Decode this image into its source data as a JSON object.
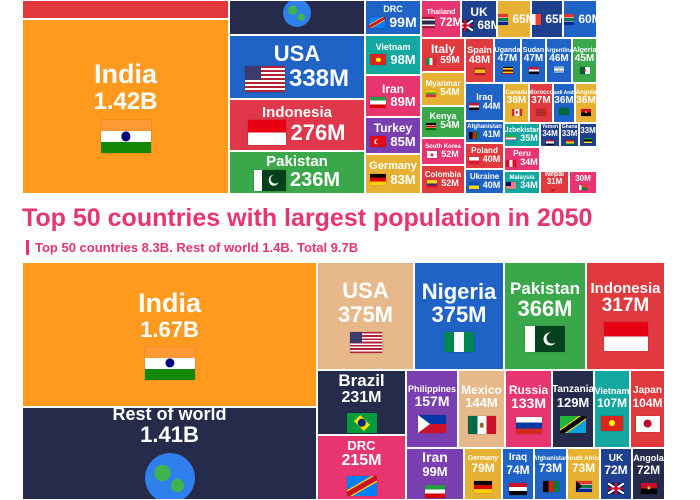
{
  "chart_data": [
    {
      "type": "treemap",
      "title": "",
      "subtitle": "",
      "unit": "people",
      "items": [
        {
          "name": "",
          "value": "",
          "color": "#e03a3e",
          "flag": "none"
        },
        {
          "name": "",
          "value": "",
          "color": "#262b4c",
          "flag": "globe"
        },
        {
          "name": "India",
          "value": "1.42B",
          "color": "#ff9a1f",
          "flag": "india"
        },
        {
          "name": "USA",
          "value": "338M",
          "color": "#1f63c6",
          "flag": "usa"
        },
        {
          "name": "Indonesia",
          "value": "276M",
          "color": "#e0374a",
          "flag": "indonesia"
        },
        {
          "name": "Pakistan",
          "value": "236M",
          "color": "#3aa84a",
          "flag": "pakistan"
        },
        {
          "name": "DRC",
          "value": "99M",
          "color": "#1f63c6",
          "flag": "drc"
        },
        {
          "name": "Vietnam",
          "value": "98M",
          "color": "#12a8a0",
          "flag": "vietnam"
        },
        {
          "name": "Iran",
          "value": "89M",
          "color": "#e8356f",
          "flag": "iran"
        },
        {
          "name": "Turkey",
          "value": "85M",
          "color": "#7a3fb0",
          "flag": "turkey"
        },
        {
          "name": "Germany",
          "value": "83M",
          "color": "#e7b233",
          "flag": "germany"
        },
        {
          "name": "Thailand",
          "value": "72M",
          "color": "#e8356f",
          "flag": "thailand"
        },
        {
          "name": "UK",
          "value": "68M",
          "color": "#1f3f8f",
          "flag": "uk"
        },
        {
          "name": "",
          "value": "65M",
          "color": "#e7b233",
          "flag": "southafrica"
        },
        {
          "name": "",
          "value": "65M",
          "color": "#1f3f8f",
          "flag": "france"
        },
        {
          "name": "",
          "value": "60M",
          "color": "#1f63c6",
          "flag": "southafrica"
        },
        {
          "name": "Italy",
          "value": "59M",
          "color": "#e03a3e",
          "flag": "italy"
        },
        {
          "name": "Myanmar",
          "value": "54M",
          "color": "#e7b233",
          "flag": "myanmar"
        },
        {
          "name": "Kenya",
          "value": "54M",
          "color": "#3aa84a",
          "flag": "kenya"
        },
        {
          "name": "South Korea",
          "value": "52M",
          "color": "#e8356f",
          "flag": "southkorea"
        },
        {
          "name": "Colombia",
          "value": "52M",
          "color": "#e03a3e",
          "flag": "colombia"
        },
        {
          "name": "Spain",
          "value": "48M",
          "color": "#e03a3e",
          "flag": "spain"
        },
        {
          "name": "Uganda",
          "value": "47M",
          "color": "#1f63c6",
          "flag": "uganda"
        },
        {
          "name": "Sudan",
          "value": "47M",
          "color": "#1f63c6",
          "flag": "sudan"
        },
        {
          "name": "Argentina",
          "value": "46M",
          "color": "#1f63c6",
          "flag": "argentina"
        },
        {
          "name": "Algeria",
          "value": "45M",
          "color": "#3aa84a",
          "flag": "algeria"
        },
        {
          "name": "Iraq",
          "value": "44M",
          "color": "#1f63c6",
          "flag": "iraq"
        },
        {
          "name": "Afghanistan",
          "value": "41M",
          "color": "#1f63c6",
          "flag": "afghanistan"
        },
        {
          "name": "Poland",
          "value": "40M",
          "color": "#e03a3e",
          "flag": "poland"
        },
        {
          "name": "Ukraine",
          "value": "40M",
          "color": "#1f63c6",
          "flag": "ukraine"
        },
        {
          "name": "Canada",
          "value": "38M",
          "color": "#e7b233",
          "flag": "canada"
        },
        {
          "name": "Morocco",
          "value": "37M",
          "color": "#e03a3e",
          "flag": "morocco"
        },
        {
          "name": "Saudi Arabia",
          "value": "36M",
          "color": "#1f63c6",
          "flag": "saudi"
        },
        {
          "name": "Angola",
          "value": "36M",
          "color": "#e7b233",
          "flag": "angola"
        },
        {
          "name": "Uzbekistan",
          "value": "35M",
          "color": "#12a8a0",
          "flag": "uzbekistan"
        },
        {
          "name": "Yemen",
          "value": "34M",
          "color": "#1f3f8f",
          "flag": "yemen"
        },
        {
          "name": "Ghana",
          "value": "33M",
          "color": "#1f3f8f",
          "flag": "ghana"
        },
        {
          "name": "",
          "value": "33M",
          "color": "#1f3f8f",
          "flag": "mozambique"
        },
        {
          "name": "Peru",
          "value": "34M",
          "color": "#e8356f",
          "flag": "peru"
        },
        {
          "name": "Malaysia",
          "value": "34M",
          "color": "#12a8a0",
          "flag": "malaysia"
        },
        {
          "name": "Nepal",
          "value": "31M",
          "color": "#e03a3e",
          "flag": "nepal"
        },
        {
          "name": "",
          "value": "30M",
          "color": "#e8356f",
          "flag": "madagascar"
        }
      ]
    },
    {
      "type": "treemap",
      "title": "Top 50 countries with largest population in 2050",
      "subtitle": "Top 50 countries 8.3B. Rest of world 1.4B. Total 9.7B",
      "unit": "people",
      "items": [
        {
          "name": "India",
          "value": "1.67B",
          "color": "#ff9a1f",
          "flag": "india"
        },
        {
          "name": "Rest of world",
          "value": "1.41B",
          "color": "#262b4c",
          "flag": "globe"
        },
        {
          "name": "USA",
          "value": "375M",
          "color": "#e7b98a",
          "flag": "usa"
        },
        {
          "name": "Nigeria",
          "value": "375M",
          "color": "#1f63c6",
          "flag": "nigeria"
        },
        {
          "name": "Pakistan",
          "value": "366M",
          "color": "#3aa84a",
          "flag": "pakistan"
        },
        {
          "name": "Indonesia",
          "value": "317M",
          "color": "#e03a3e",
          "flag": "indonesia"
        },
        {
          "name": "Brazil",
          "value": "231M",
          "color": "#262b4c",
          "flag": "brazil"
        },
        {
          "name": "DRC",
          "value": "215M",
          "color": "#e8356f",
          "flag": "drc"
        },
        {
          "name": "Philippines",
          "value": "157M",
          "color": "#7a3fb0",
          "flag": "philippines"
        },
        {
          "name": "Mexico",
          "value": "144M",
          "color": "#e7b98a",
          "flag": "mexico"
        },
        {
          "name": "Russia",
          "value": "133M",
          "color": "#e8356f",
          "flag": "russia"
        },
        {
          "name": "Tanzania",
          "value": "129M",
          "color": "#262b4c",
          "flag": "tanzania"
        },
        {
          "name": "Vietnam",
          "value": "107M",
          "color": "#12a8a0",
          "flag": "vietnam"
        },
        {
          "name": "Japan",
          "value": "104M",
          "color": "#e03a3e",
          "flag": "japan"
        },
        {
          "name": "Iran",
          "value": "99M",
          "color": "#7a3fb0",
          "flag": "iran"
        },
        {
          "name": "Germany",
          "value": "79M",
          "color": "#e7b233",
          "flag": "germany"
        },
        {
          "name": "Iraq",
          "value": "74M",
          "color": "#1f63c6",
          "flag": "iraq"
        },
        {
          "name": "Afghanistan",
          "value": "73M",
          "color": "#1f63c6",
          "flag": "afghanistan"
        },
        {
          "name": "South Africa",
          "value": "73M",
          "color": "#e7b233",
          "flag": "southafrica"
        },
        {
          "name": "UK",
          "value": "72M",
          "color": "#1f3f8f",
          "flag": "uk"
        },
        {
          "name": "Angola",
          "value": "72M",
          "color": "#262b4c",
          "flag": "angola"
        }
      ]
    }
  ]
}
